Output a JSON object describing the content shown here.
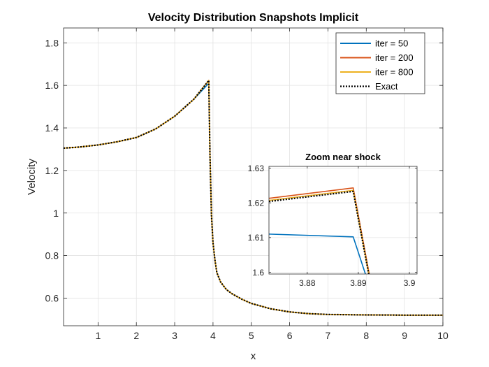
{
  "figure": {
    "title": "Velocity Distribution Snapshots Implicit",
    "xlabel": "x",
    "ylabel": "Velocity"
  },
  "chart_data": [
    {
      "type": "line",
      "title": "Velocity Distribution Snapshots Implicit",
      "xlabel": "x",
      "ylabel": "Velocity",
      "xlim": [
        0.1,
        10
      ],
      "ylim": [
        0.47,
        1.87
      ],
      "xticks": [
        1,
        2,
        3,
        4,
        5,
        6,
        7,
        8,
        9,
        10
      ],
      "yticks": [
        0.6,
        0.8,
        1,
        1.2,
        1.4,
        1.6,
        1.8
      ],
      "xtick_labels": [
        "1",
        "2",
        "3",
        "4",
        "5",
        "6",
        "7",
        "8",
        "9",
        "10"
      ],
      "ytick_labels": [
        "0.6",
        "0.8",
        "1",
        "1.2",
        "1.4",
        "1.6",
        "1.8"
      ],
      "grid": true,
      "legend_position": "top-right",
      "series": [
        {
          "name": "iter = 50",
          "color": "#0072BD",
          "style": "solid",
          "x": [
            0.1,
            0.5,
            1.0,
            1.5,
            2.0,
            2.5,
            3.0,
            3.5,
            3.89,
            3.92,
            3.96,
            4.0,
            4.05,
            4.1,
            4.2,
            4.35,
            4.5,
            4.75,
            5.0,
            5.5,
            6.0,
            6.5,
            7.0,
            8.0,
            9.0,
            10.0
          ],
          "y": [
            1.305,
            1.31,
            1.32,
            1.335,
            1.355,
            1.395,
            1.455,
            1.535,
            1.61,
            1.28,
            0.99,
            0.86,
            0.78,
            0.72,
            0.675,
            0.64,
            0.62,
            0.595,
            0.575,
            0.55,
            0.535,
            0.527,
            0.523,
            0.521,
            0.52,
            0.52
          ]
        },
        {
          "name": "iter = 200",
          "color": "#D95319",
          "style": "solid",
          "x": [
            0.1,
            0.5,
            1.0,
            1.5,
            2.0,
            2.5,
            3.0,
            3.5,
            3.89,
            3.92,
            3.96,
            4.0,
            4.05,
            4.1,
            4.2,
            4.35,
            4.5,
            4.75,
            5.0,
            5.5,
            6.0,
            6.5,
            7.0,
            8.0,
            9.0,
            10.0
          ],
          "y": [
            1.305,
            1.31,
            1.32,
            1.335,
            1.355,
            1.395,
            1.455,
            1.535,
            1.624,
            1.28,
            0.99,
            0.86,
            0.78,
            0.72,
            0.675,
            0.64,
            0.62,
            0.595,
            0.575,
            0.55,
            0.535,
            0.527,
            0.523,
            0.521,
            0.52,
            0.52
          ]
        },
        {
          "name": "iter = 800",
          "color": "#EDB120",
          "style": "solid",
          "x": [
            0.1,
            0.5,
            1.0,
            1.5,
            2.0,
            2.5,
            3.0,
            3.5,
            3.89,
            3.92,
            3.96,
            4.0,
            4.05,
            4.1,
            4.2,
            4.35,
            4.5,
            4.75,
            5.0,
            5.5,
            6.0,
            6.5,
            7.0,
            8.0,
            9.0,
            10.0
          ],
          "y": [
            1.305,
            1.31,
            1.32,
            1.335,
            1.355,
            1.395,
            1.455,
            1.535,
            1.623,
            1.28,
            0.99,
            0.86,
            0.78,
            0.72,
            0.675,
            0.64,
            0.62,
            0.595,
            0.575,
            0.55,
            0.535,
            0.527,
            0.523,
            0.521,
            0.52,
            0.52
          ]
        },
        {
          "name": "Exact",
          "color": "#000000",
          "style": "dotted",
          "x": [
            0.1,
            0.5,
            1.0,
            1.5,
            2.0,
            2.5,
            3.0,
            3.5,
            3.89,
            3.92,
            3.96,
            4.0,
            4.05,
            4.1,
            4.2,
            4.35,
            4.5,
            4.75,
            5.0,
            5.5,
            6.0,
            6.5,
            7.0,
            8.0,
            9.0,
            10.0
          ],
          "y": [
            1.305,
            1.31,
            1.32,
            1.335,
            1.355,
            1.395,
            1.455,
            1.535,
            1.623,
            1.28,
            0.99,
            0.86,
            0.78,
            0.72,
            0.675,
            0.64,
            0.62,
            0.595,
            0.575,
            0.55,
            0.535,
            0.527,
            0.523,
            0.521,
            0.52,
            0.52
          ]
        }
      ]
    },
    {
      "type": "line",
      "title": "Zoom near shock",
      "xlabel": "",
      "ylabel": "",
      "xlim": [
        3.8725,
        3.9015
      ],
      "ylim": [
        1.5995,
        1.6305
      ],
      "xticks": [
        3.88,
        3.89,
        3.9
      ],
      "yticks": [
        1.6,
        1.61,
        1.62,
        1.63
      ],
      "xtick_labels": [
        "3.88",
        "3.89",
        "3.9"
      ],
      "ytick_labels": [
        "1.6",
        "1.61",
        "1.62",
        "1.63"
      ],
      "grid": true,
      "series": [
        {
          "color": "#0072BD",
          "style": "solid",
          "x": [
            3.8725,
            3.889,
            3.8915
          ],
          "y": [
            1.611,
            1.6102,
            1.599
          ]
        },
        {
          "color": "#D95319",
          "style": "solid",
          "x": [
            3.8725,
            3.889,
            3.8922
          ],
          "y": [
            1.6213,
            1.6243,
            1.599
          ]
        },
        {
          "color": "#EDB120",
          "style": "solid",
          "x": [
            3.8725,
            3.889,
            3.8921
          ],
          "y": [
            1.6207,
            1.6236,
            1.599
          ]
        },
        {
          "color": "#000000",
          "style": "dotted",
          "x": [
            3.8725,
            3.889,
            3.8921
          ],
          "y": [
            1.6204,
            1.6233,
            1.599
          ]
        }
      ]
    }
  ]
}
